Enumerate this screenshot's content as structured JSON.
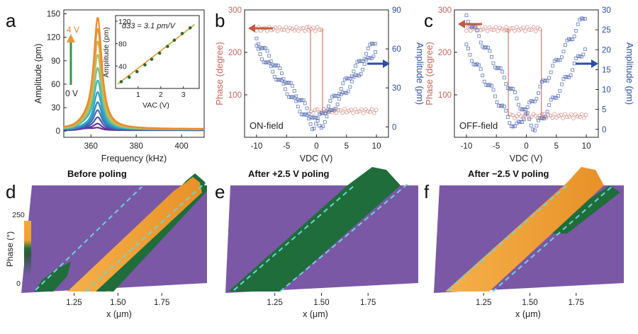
{
  "panels": {
    "a": {
      "letter": "a"
    },
    "b": {
      "letter": "b"
    },
    "c": {
      "letter": "c"
    },
    "d": {
      "letter": "d"
    },
    "e": {
      "letter": "e"
    },
    "f": {
      "letter": "f"
    }
  },
  "chart_data": [
    {
      "id": "a",
      "type": "line",
      "xlabel": "Frequency (kHz)",
      "ylabel": "Amplitude (pm)",
      "xlim": [
        348,
        410
      ],
      "ylim": [
        -8,
        155
      ],
      "xticks": [
        360,
        380,
        400
      ],
      "yticks": [
        0,
        30,
        60,
        90,
        120,
        150
      ],
      "peak_center_khz": 363,
      "series_voltage_labels": {
        "top": "4 V",
        "bottom": "0 V"
      },
      "peak_amplitudes": [
        3,
        8,
        16,
        25,
        35,
        48,
        62,
        78,
        95,
        112,
        128,
        142
      ],
      "series_colors": [
        "#6a2d8f",
        "#5b3a9a",
        "#4b55a8",
        "#3a6db5",
        "#2e86c1",
        "#2aa2c9",
        "#3db8b0",
        "#78c28a",
        "#b4c36a",
        "#d8b04e",
        "#e59a3a",
        "#ee8a2a"
      ],
      "inset": {
        "type": "scatter",
        "annotation": "d33 = 3.1 pm/V",
        "xlabel": "VAC (V)",
        "ylabel": "Amplitude (pm)",
        "xlim": [
          0,
          3.7
        ],
        "ylim": [
          0,
          130
        ],
        "xticks": [
          1,
          2,
          3
        ],
        "yticks": [
          40,
          80,
          120
        ],
        "x": [
          0.25,
          0.6,
          0.95,
          1.3,
          1.6,
          1.95,
          2.3,
          2.6,
          2.95,
          3.3
        ],
        "y": [
          12,
          20,
          30,
          42,
          52,
          63,
          75,
          86,
          98,
          108
        ],
        "fit": {
          "x": [
            0.1,
            3.5
          ],
          "y": [
            8,
            114
          ]
        }
      }
    },
    {
      "id": "b",
      "type": "scatter",
      "annotation": "ON-field",
      "xlabel": "VDC (V)",
      "ylabel_left": "Phase (degree)",
      "ylabel_right": "Amplitude (pm)",
      "xlim": [
        -12,
        12
      ],
      "ylim_left": [
        0,
        300
      ],
      "ylim_right": [
        -8,
        90
      ],
      "xticks": [
        -10,
        -5,
        0,
        5,
        10
      ],
      "yticks_left": [
        100,
        200,
        300
      ],
      "yticks_right": [
        0,
        30,
        60,
        90
      ],
      "phase_levels": {
        "high": 255,
        "low": 62
      },
      "coercive_v": [
        -1,
        1
      ],
      "amplitude_peak": 67,
      "amplitude_min_v": 0
    },
    {
      "id": "c",
      "type": "scatter",
      "annotation": "OFF-field",
      "xlabel": "VDC (V)",
      "ylabel_left": "Phase (degree)",
      "ylabel_right": "Amplitude (pm)",
      "xlim": [
        -12,
        12
      ],
      "ylim_left": [
        0,
        300
      ],
      "ylim_right": [
        -2,
        30
      ],
      "xticks": [
        -10,
        -5,
        0,
        5,
        10
      ],
      "yticks_left": [
        100,
        200,
        300
      ],
      "yticks_right": [
        0,
        5,
        10,
        15,
        20,
        25,
        30
      ],
      "phase_levels": {
        "high": 255,
        "low": 50
      },
      "coercive_v": [
        -3,
        2.5
      ],
      "amplitude_peak": 26,
      "amplitude_min_v": [
        -2,
        2
      ]
    },
    {
      "id": "d",
      "type": "heatmap",
      "title": "Before poling",
      "xlabel": "x (μm)",
      "xticks": [
        1.25,
        1.5,
        1.75
      ],
      "colorbar": {
        "label": "Phase (°)",
        "max": "250",
        "min": "0"
      },
      "stripe": "orange-center"
    },
    {
      "id": "e",
      "type": "heatmap",
      "title": "After +2.5 V poling",
      "xlabel": "x (μm)",
      "xticks": [
        1.25,
        1.5,
        1.75
      ],
      "stripe": "green"
    },
    {
      "id": "f",
      "type": "heatmap",
      "title": "After −2.5 V poling",
      "xlabel": "x (μm)",
      "xticks": [
        1.25,
        1.5,
        1.75
      ],
      "stripe": "orange"
    }
  ],
  "colors": {
    "purple": "#7a58a6",
    "orange": "#f2a23a",
    "green": "#1f6d3a",
    "phase": "#d07a70",
    "amplitude": "#4a64b0",
    "arrow_red": "#c65a3c",
    "arrow_blue": "#2b4fa3",
    "dash": "#6ad5d8"
  }
}
